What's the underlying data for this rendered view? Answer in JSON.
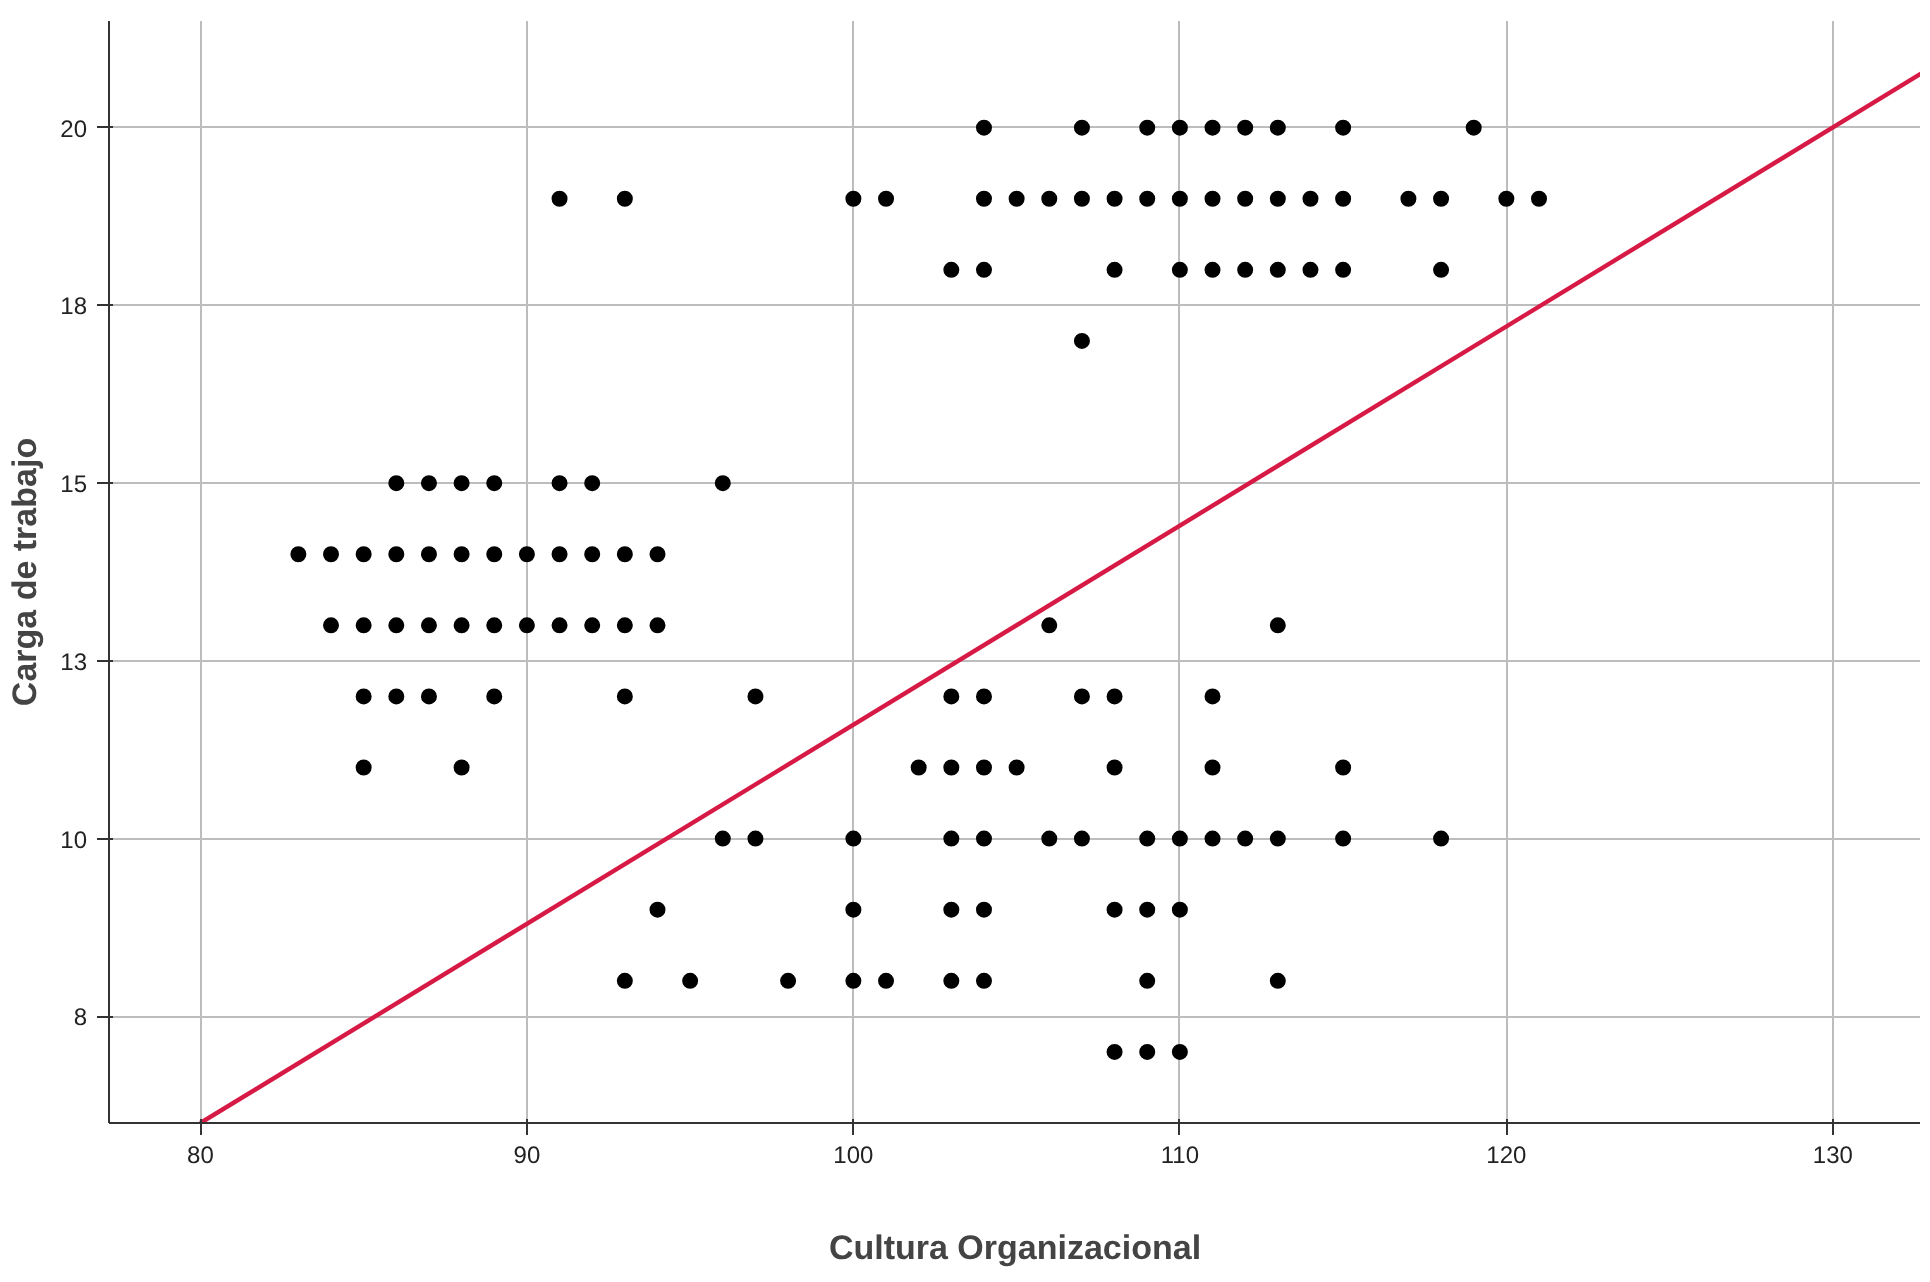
{
  "chart_data": {
    "type": "scatter",
    "xlabel": "Cultura Organizacional",
    "ylabel": "Carga de trabajo",
    "xlim": [
      77.2,
      132.7
    ],
    "ylim": [
      6.0,
      21.5
    ],
    "xticks": [
      80,
      90,
      100,
      110,
      120,
      130
    ],
    "yticks": [
      {
        "value": 7.5,
        "label": "8"
      },
      10,
      {
        "value": 12.5,
        "label": "13"
      },
      15,
      {
        "value": 17.5,
        "label": "18"
      },
      20
    ],
    "grid": true,
    "marker": "circle",
    "series": [
      {
        "color": "#000000",
        "x": [
          104,
          107,
          109,
          110,
          111,
          112,
          113,
          115,
          119,
          91,
          93,
          100,
          101,
          104,
          105,
          106,
          107,
          108,
          109,
          110,
          111,
          112,
          113,
          114,
          115,
          117,
          118,
          120,
          121,
          103,
          104,
          108,
          110,
          111,
          112,
          113,
          114,
          115,
          118,
          107,
          86,
          87,
          88,
          89,
          91,
          92,
          96,
          83,
          84,
          85,
          86,
          87,
          88,
          89,
          90,
          91,
          92,
          93,
          94,
          84,
          85,
          86,
          87,
          88,
          89,
          90,
          91,
          92,
          93,
          94,
          106,
          113,
          85,
          86,
          87,
          89,
          93,
          97,
          103,
          104,
          107,
          108,
          111,
          85,
          88,
          102,
          103,
          104,
          105,
          108,
          111,
          115,
          96,
          97,
          100,
          103,
          104,
          106,
          107,
          109,
          110,
          111,
          112,
          113,
          115,
          118,
          94,
          100,
          103,
          104,
          108,
          109,
          110,
          93,
          95,
          98,
          100,
          101,
          103,
          104,
          109,
          113,
          108,
          109,
          110
        ],
        "values": [
          20,
          20,
          20,
          20,
          20,
          20,
          20,
          20,
          20,
          19,
          19,
          19,
          19,
          19,
          19,
          19,
          19,
          19,
          19,
          19,
          19,
          19,
          19,
          19,
          19,
          19,
          19,
          19,
          19,
          18,
          18,
          18,
          18,
          18,
          18,
          18,
          18,
          18,
          18,
          17,
          15,
          15,
          15,
          15,
          15,
          15,
          15,
          14,
          14,
          14,
          14,
          14,
          14,
          14,
          14,
          14,
          14,
          14,
          14,
          13,
          13,
          13,
          13,
          13,
          13,
          13,
          13,
          13,
          13,
          13,
          13,
          13,
          12,
          12,
          12,
          12,
          12,
          12,
          12,
          12,
          12,
          12,
          12,
          11,
          11,
          11,
          11,
          11,
          11,
          11,
          11,
          11,
          10,
          10,
          10,
          10,
          10,
          10,
          10,
          10,
          10,
          10,
          10,
          10,
          10,
          10,
          9,
          9,
          9,
          9,
          9,
          9,
          9,
          8,
          8,
          8,
          8,
          8,
          8,
          8,
          8,
          8,
          7,
          7,
          7
        ]
      },
      {
        "type": "line",
        "color": "#d71a45",
        "marker": "none",
        "line_style": "solid",
        "x": [
          80,
          132.7
        ],
        "values": [
          6.0,
          20.76
        ]
      }
    ]
  }
}
